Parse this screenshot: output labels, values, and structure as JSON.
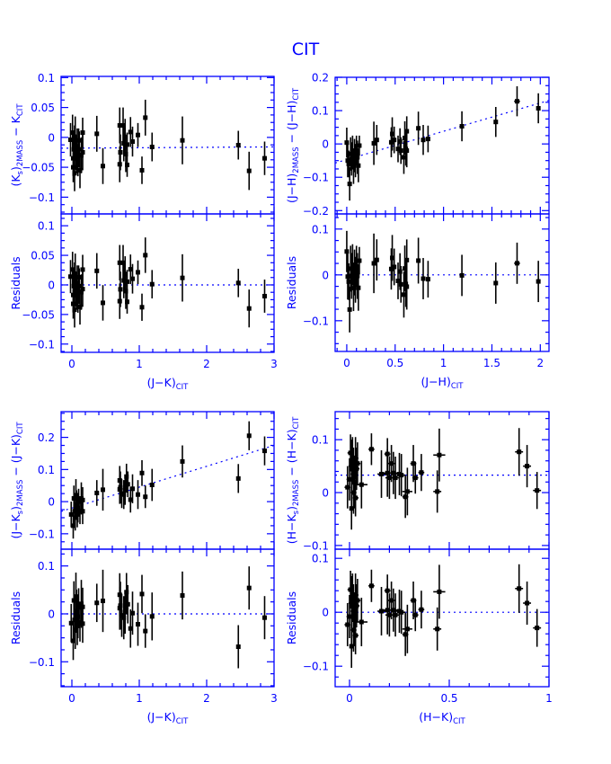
{
  "chart_data": {
    "title": "CIT",
    "type": "scatter",
    "colors": {
      "axes": "#0000ff",
      "points": "#000000",
      "fit": "#0000ff"
    },
    "residual_label": "Residuals",
    "panels": [
      {
        "id": "jk-ks",
        "xlabel": [
          {
            "t": "(J−K)"
          },
          {
            "sub": "CIT"
          }
        ],
        "ylabel": [
          {
            "t": "(K"
          },
          {
            "sub": "s"
          },
          {
            "t": ")"
          },
          {
            "sub": "2MASS"
          },
          {
            "t": " − K"
          },
          {
            "sub": "CIT"
          }
        ],
        "xlim": [
          -0.16,
          3.0
        ],
        "xticks": [
          0,
          1,
          2,
          3
        ],
        "xtick_labels": [
          "0",
          "1",
          "2",
          "3"
        ],
        "xminor": 0.2,
        "ylim": [
          -0.128,
          0.102
        ],
        "yticks": [
          -0.1,
          -0.05,
          0,
          0.05,
          0.1
        ],
        "ytick_labels": [
          "−0.1",
          "−0.05",
          "0",
          "0.05",
          "0.1"
        ],
        "yminor": 0.0125,
        "res_ylim": [
          -0.114,
          0.12
        ],
        "res_yticks": [
          -0.1,
          -0.05,
          0,
          0.05,
          0.1
        ],
        "res_ytick_labels": [
          "−0.1",
          "−0.05",
          "0",
          "0.05",
          "0.1"
        ],
        "res_yminor": 0.0125,
        "fit": {
          "intercept": -0.018,
          "slope": 0.0007
        },
        "points": [
          [
            -0.02,
            -0.004,
            0.028,
            0
          ],
          [
            0.01,
            0.008,
            0.03,
            0
          ],
          [
            0.02,
            -0.035,
            0.03,
            0
          ],
          [
            0.02,
            -0.05,
            0.025,
            0
          ],
          [
            0.03,
            -0.02,
            0.03,
            0
          ],
          [
            0.04,
            -0.06,
            0.03,
            0
          ],
          [
            0.04,
            -0.01,
            0.03,
            0
          ],
          [
            0.05,
            0.0,
            0.035,
            0
          ],
          [
            0.06,
            -0.025,
            0.03,
            0
          ],
          [
            0.07,
            -0.03,
            0.03,
            0
          ],
          [
            0.08,
            -0.015,
            0.03,
            0
          ],
          [
            0.09,
            -0.04,
            0.025,
            0
          ],
          [
            0.1,
            -0.005,
            0.02,
            0
          ],
          [
            0.11,
            -0.02,
            0.03,
            0
          ],
          [
            0.12,
            -0.055,
            0.03,
            0
          ],
          [
            0.14,
            -0.03,
            0.03,
            0
          ],
          [
            0.16,
            0.008,
            0.025,
            0
          ],
          [
            0.16,
            -0.025,
            0.03,
            0
          ],
          [
            0.37,
            0.006,
            0.03,
            0
          ],
          [
            0.46,
            -0.048,
            0.03,
            0
          ],
          [
            0.71,
            0.02,
            0.03,
            0
          ],
          [
            0.72,
            -0.025,
            0.03,
            0
          ],
          [
            0.71,
            -0.045,
            0.03,
            0
          ],
          [
            0.76,
            0.02,
            0.03,
            0
          ],
          [
            0.77,
            -0.01,
            0.03,
            0
          ],
          [
            0.79,
            0.001,
            0.03,
            0
          ],
          [
            0.8,
            -0.028,
            0.03,
            0
          ],
          [
            0.82,
            -0.012,
            0.02,
            0
          ],
          [
            0.82,
            -0.046,
            0.02,
            0
          ],
          [
            0.87,
            0.009,
            0.025,
            0
          ],
          [
            0.9,
            -0.007,
            0.025,
            0
          ],
          [
            0.98,
            0.004,
            0.02,
            0
          ],
          [
            1.04,
            -0.055,
            0.023,
            0
          ],
          [
            1.09,
            0.033,
            0.03,
            0
          ],
          [
            1.19,
            -0.016,
            0.024,
            0
          ],
          [
            1.64,
            -0.005,
            0.04,
            0
          ],
          [
            2.47,
            -0.013,
            0.024,
            0
          ],
          [
            2.63,
            -0.056,
            0.032,
            0
          ],
          [
            2.86,
            -0.035,
            0.028,
            0
          ]
        ]
      },
      {
        "id": "jh",
        "xlabel": [
          {
            "t": "(J−H)"
          },
          {
            "sub": "CIT"
          }
        ],
        "ylabel": [
          {
            "t": "(J−H)"
          },
          {
            "sub": "2MASS"
          },
          {
            "t": " − (J−H)"
          },
          {
            "sub": "CIT"
          }
        ],
        "xlim": [
          -0.12,
          2.09
        ],
        "xticks": [
          0,
          0.5,
          1,
          1.5,
          2
        ],
        "xtick_labels": [
          "0",
          "0.5",
          "1",
          "1.5",
          "2"
        ],
        "xminor": 0.1,
        "ylim": [
          -0.21,
          0.2
        ],
        "yticks": [
          -0.2,
          -0.1,
          0,
          0.1,
          0.2
        ],
        "ytick_labels": [
          "−0.2",
          "−0.1",
          "0",
          "0.1",
          "0.2"
        ],
        "yminor": 0.025,
        "res_ylim": [
          -0.167,
          0.133
        ],
        "res_yticks": [
          -0.1,
          0,
          0.1
        ],
        "res_ytick_labels": [
          "−0.1",
          "0",
          "0.1"
        ],
        "res_yminor": 0.025,
        "fit": {
          "intercept": -0.047,
          "slope": 0.085
        },
        "points": [
          [
            0,
            0.004,
            0.045,
            0
          ],
          [
            0.01,
            -0.05,
            0.05,
            0
          ],
          [
            0.02,
            -0.06,
            0.04,
            0
          ],
          [
            0.03,
            -0.12,
            0.05,
            0
          ],
          [
            0.04,
            -0.03,
            0.05,
            0
          ],
          [
            0.05,
            -0.045,
            0.05,
            0
          ],
          [
            0.06,
            -0.02,
            0.045,
            0
          ],
          [
            0.07,
            -0.07,
            0.05,
            0
          ],
          [
            0.08,
            -0.035,
            0.05,
            0
          ],
          [
            0.09,
            -0.05,
            0.05,
            0
          ],
          [
            0.1,
            -0.02,
            0.045,
            0
          ],
          [
            0.11,
            -0.04,
            0.05,
            0
          ],
          [
            0.12,
            -0.065,
            0.05,
            0
          ],
          [
            0.13,
            -0.005,
            0.03,
            0
          ],
          [
            0.28,
            0.002,
            0.065,
            0.02
          ],
          [
            0.31,
            0.012,
            0.045,
            0.02
          ],
          [
            0.46,
            0.005,
            0.045,
            0.02
          ],
          [
            0.47,
            0.03,
            0.05,
            0
          ],
          [
            0.49,
            0.012,
            0.04,
            0.02
          ],
          [
            0.53,
            -0.015,
            0.04,
            0.02
          ],
          [
            0.55,
            0.007,
            0.04,
            0
          ],
          [
            0.56,
            -0.02,
            0.04,
            0.02
          ],
          [
            0.59,
            -0.04,
            0.05,
            0
          ],
          [
            0.6,
            0.018,
            0.05,
            0.02
          ],
          [
            0.61,
            -0.015,
            0.05,
            0
          ],
          [
            0.62,
            0.038,
            0.045,
            0.02
          ],
          [
            0.62,
            -0.02,
            0.05,
            0
          ],
          [
            0.74,
            0.047,
            0.05,
            0.02
          ],
          [
            0.79,
            0.012,
            0.045,
            0.02
          ],
          [
            0.84,
            0.015,
            0.04,
            0.02
          ],
          [
            1.19,
            0.053,
            0.045,
            0.02
          ],
          [
            1.54,
            0.066,
            0.045,
            0.02
          ],
          [
            1.76,
            0.128,
            0.045,
            0.03
          ],
          [
            1.98,
            0.107,
            0.045,
            0.02
          ]
        ]
      },
      {
        "id": "jk-jks",
        "xlabel": [
          {
            "t": "(J−K)"
          },
          {
            "sub": "CIT"
          }
        ],
        "ylabel": [
          {
            "t": "(J−K"
          },
          {
            "sub": "s"
          },
          {
            "t": ")"
          },
          {
            "sub": "2MASS"
          },
          {
            "t": " − (J−K)"
          },
          {
            "sub": "CIT"
          }
        ],
        "xlim": [
          -0.16,
          3.0
        ],
        "xticks": [
          0,
          1,
          2,
          3
        ],
        "xtick_labels": [
          "0",
          "1",
          "2",
          "3"
        ],
        "xminor": 0.2,
        "ylim": [
          -0.148,
          0.28
        ],
        "yticks": [
          -0.1,
          0,
          0.1,
          0.2
        ],
        "ytick_labels": [
          "−0.1",
          "0",
          "0.1",
          "0.2"
        ],
        "yminor": 0.025,
        "res_ylim": [
          -0.152,
          0.135
        ],
        "res_yticks": [
          -0.1,
          0,
          0.1
        ],
        "res_ytick_labels": [
          "−0.1",
          "0",
          "0.1"
        ],
        "res_yminor": 0.025,
        "fit": {
          "intercept": -0.02,
          "slope": 0.065
        },
        "points": [
          [
            -0.01,
            -0.04,
            0.04,
            0
          ],
          [
            0.02,
            -0.075,
            0.04,
            0
          ],
          [
            0.03,
            0.01,
            0.04,
            0
          ],
          [
            0.04,
            -0.03,
            0.045,
            0
          ],
          [
            0.05,
            -0.05,
            0.04,
            0
          ],
          [
            0.06,
            0.02,
            0.05,
            0
          ],
          [
            0.07,
            -0.01,
            0.045,
            0
          ],
          [
            0.08,
            -0.04,
            0.04,
            0
          ],
          [
            0.09,
            -0.02,
            0.045,
            0
          ],
          [
            0.1,
            0.0,
            0.04,
            0
          ],
          [
            0.12,
            -0.03,
            0.04,
            0
          ],
          [
            0.14,
            0.01,
            0.05,
            0
          ],
          [
            0.16,
            -0.03,
            0.04,
            0
          ],
          [
            0.16,
            0.005,
            0.04,
            0
          ],
          [
            0.37,
            0.027,
            0.04,
            0
          ],
          [
            0.46,
            0.037,
            0.065,
            0
          ],
          [
            0.71,
            0.066,
            0.045,
            0
          ],
          [
            0.72,
            0.044,
            0.05,
            0
          ],
          [
            0.71,
            0.038,
            0.045,
            0
          ],
          [
            0.74,
            0.025,
            0.045,
            0
          ],
          [
            0.77,
            0.022,
            0.045,
            0
          ],
          [
            0.79,
            0.035,
            0.045,
            0
          ],
          [
            0.81,
            0.078,
            0.04,
            0
          ],
          [
            0.83,
            0.054,
            0.04,
            0
          ],
          [
            0.87,
            0.006,
            0.04,
            0
          ],
          [
            0.9,
            0.04,
            0.045,
            0
          ],
          [
            0.98,
            0.022,
            0.045,
            0
          ],
          [
            1.04,
            0.089,
            0.04,
            0
          ],
          [
            1.09,
            0.015,
            0.035,
            0
          ],
          [
            1.19,
            0.052,
            0.05,
            0
          ],
          [
            1.64,
            0.125,
            0.05,
            0
          ],
          [
            2.47,
            0.072,
            0.045,
            0
          ],
          [
            2.63,
            0.205,
            0.045,
            0
          ],
          [
            2.86,
            0.158,
            0.045,
            0
          ]
        ]
      },
      {
        "id": "hk",
        "xlabel": [
          {
            "t": "(H−K)"
          },
          {
            "sub": "CIT"
          }
        ],
        "ylabel": [
          {
            "t": "(H−K"
          },
          {
            "sub": "s"
          },
          {
            "t": ")"
          },
          {
            "sub": "2MASS"
          },
          {
            "t": " − (H−K)"
          },
          {
            "sub": "CIT"
          }
        ],
        "xlim": [
          -0.072,
          1.0
        ],
        "xticks": [
          0,
          0.5,
          1
        ],
        "xtick_labels": [
          "0",
          "0.5",
          "1"
        ],
        "xminor": 0.1,
        "ylim": [
          -0.107,
          0.153
        ],
        "yticks": [
          -0.1,
          0,
          0.1
        ],
        "ytick_labels": [
          "−0.1",
          "0",
          "0.1"
        ],
        "yminor": 0.02,
        "res_ylim": [
          -0.138,
          0.117
        ],
        "res_yticks": [
          -0.1,
          0,
          0.1
        ],
        "res_ytick_labels": [
          "−0.1",
          "0",
          "0.1"
        ],
        "res_yminor": 0.02,
        "fit": {
          "intercept": 0.033,
          "slope": 0
        },
        "points": [
          [
            -0.01,
            0.01,
            0.04,
            0.015
          ],
          [
            0,
            0.025,
            0.04,
            0.015
          ],
          [
            0.005,
            0.075,
            0.035,
            0.015
          ],
          [
            0.01,
            -0.03,
            0.04,
            0.01
          ],
          [
            0.01,
            0.05,
            0.05,
            0.015
          ],
          [
            0.015,
            0.06,
            0.045,
            0.015
          ],
          [
            0.02,
            0.0,
            0.04,
            0.015
          ],
          [
            0.02,
            0.035,
            0.05,
            0.015
          ],
          [
            0.025,
            0.02,
            0.05,
            0.015
          ],
          [
            0.03,
            0.065,
            0.04,
            0.015
          ],
          [
            0.03,
            -0.01,
            0.035,
            0.015
          ],
          [
            0.035,
            0.045,
            0.04,
            0.015
          ],
          [
            0.04,
            0.055,
            0.04,
            0.015
          ],
          [
            0.06,
            0.015,
            0.045,
            0.03
          ],
          [
            0.11,
            0.082,
            0.03,
            0.015
          ],
          [
            0.16,
            0.035,
            0.045,
            0.02
          ],
          [
            0.19,
            0.073,
            0.03,
            0.015
          ],
          [
            0.19,
            0.037,
            0.045,
            0.02
          ],
          [
            0.2,
            0.028,
            0.04,
            0.02
          ],
          [
            0.21,
            0.055,
            0.035,
            0.02
          ],
          [
            0.22,
            0.037,
            0.04,
            0.02
          ],
          [
            0.23,
            0.028,
            0.04,
            0.02
          ],
          [
            0.25,
            0.035,
            0.04,
            0.02
          ],
          [
            0.26,
            0.033,
            0.04,
            0.02
          ],
          [
            0.28,
            -0.008,
            0.04,
            0.015
          ],
          [
            0.29,
            0.002,
            0.045,
            0.025
          ],
          [
            0.32,
            0.055,
            0.035,
            0.015
          ],
          [
            0.33,
            0.028,
            0.03,
            0.015
          ],
          [
            0.36,
            0.038,
            0.035,
            0.015
          ],
          [
            0.44,
            0.002,
            0.04,
            0.02
          ],
          [
            0.45,
            0.071,
            0.05,
            0.03
          ],
          [
            0.85,
            0.077,
            0.045,
            0.02
          ],
          [
            0.89,
            0.05,
            0.04,
            0.02
          ],
          [
            0.94,
            0.004,
            0.035,
            0.02
          ]
        ]
      }
    ]
  }
}
